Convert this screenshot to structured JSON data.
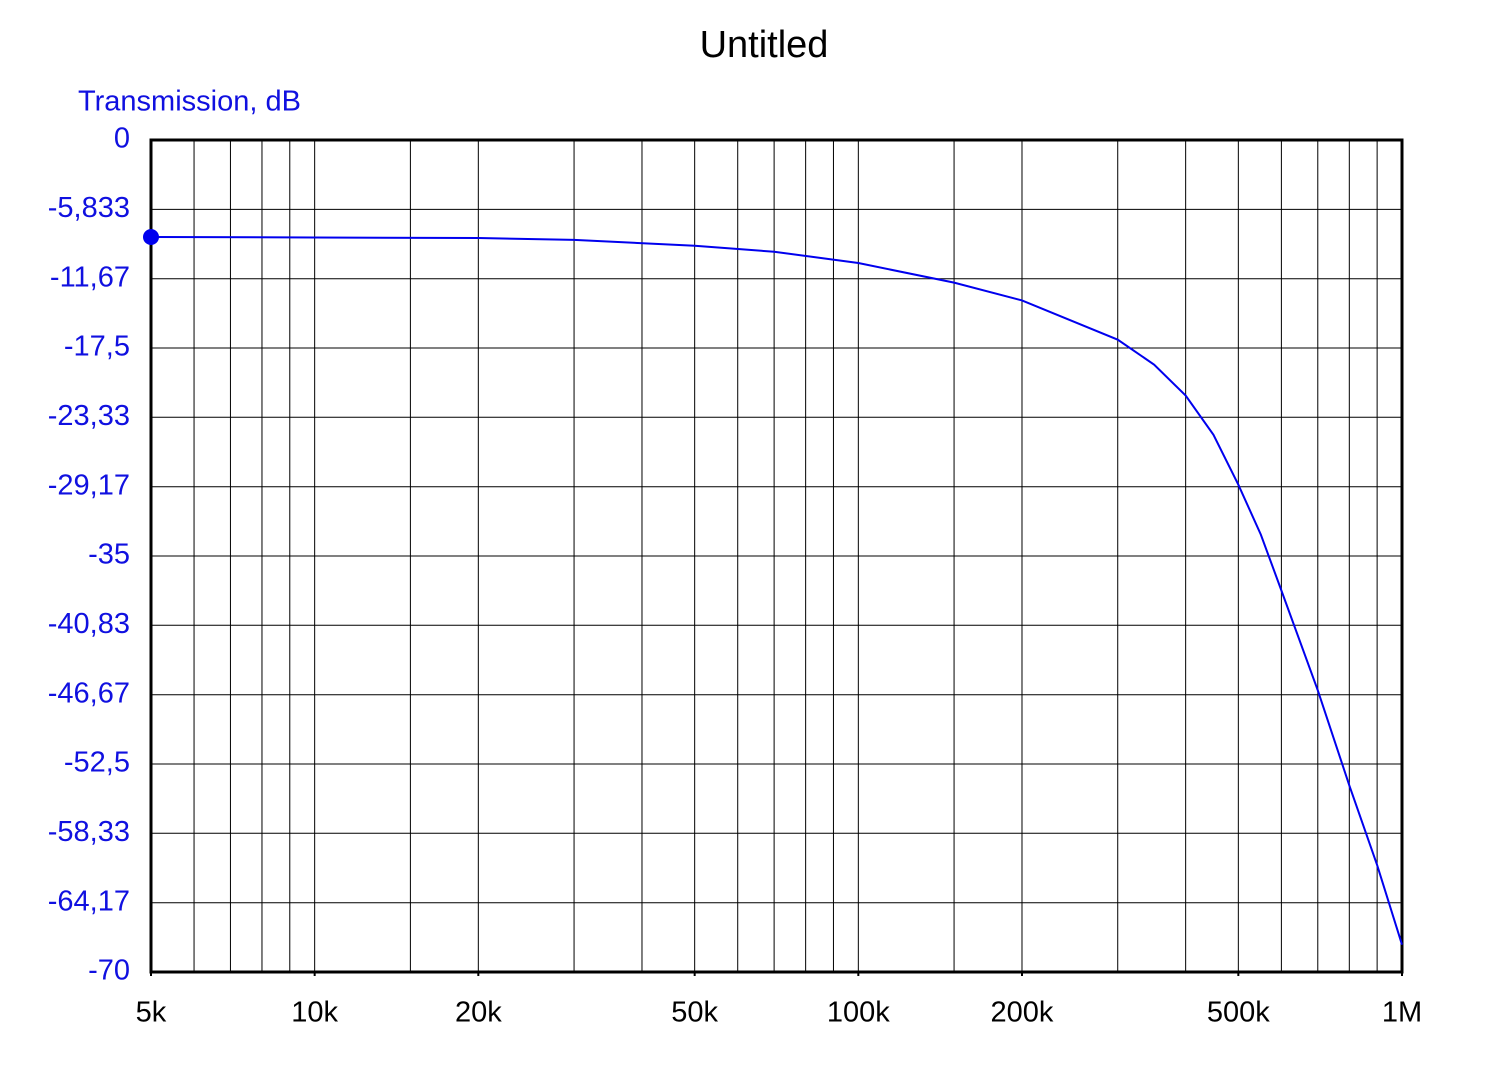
{
  "chart_data": {
    "type": "line",
    "title": "Untitled",
    "y_label": "Transmission, dB",
    "x": [
      5000,
      10000,
      20000,
      30000,
      50000,
      70000,
      100000,
      150000,
      200000,
      300000,
      350000,
      400000,
      450000,
      500000,
      550000,
      600000,
      700000,
      800000,
      900000,
      1000000
    ],
    "values": [
      -8.16,
      -8.2,
      -8.25,
      -8.4,
      -8.9,
      -9.4,
      -10.35,
      -12.0,
      -13.5,
      -16.8,
      -18.9,
      -21.5,
      -24.8,
      -29.0,
      -33.2,
      -37.9,
      -46.3,
      -54.3,
      -61.0,
      -67.7
    ],
    "color": "#0000ee",
    "marker_first": true,
    "xscale": "log",
    "xlim": [
      5000,
      1000000
    ],
    "xticks": [
      {
        "value": 5000,
        "label": "5k"
      },
      {
        "value": 10000,
        "label": "10k"
      },
      {
        "value": 20000,
        "label": "20k"
      },
      {
        "value": 50000,
        "label": "50k"
      },
      {
        "value": 100000,
        "label": "100k"
      },
      {
        "value": 200000,
        "label": "200k"
      },
      {
        "value": 500000,
        "label": "500k"
      },
      {
        "value": 1000000,
        "label": "1M"
      }
    ],
    "xgrid": [
      6000,
      7000,
      8000,
      9000,
      10000,
      15000,
      20000,
      30000,
      40000,
      50000,
      60000,
      70000,
      80000,
      90000,
      100000,
      150000,
      200000,
      300000,
      400000,
      500000,
      600000,
      700000,
      800000,
      900000
    ],
    "ylim": [
      -70,
      0
    ],
    "yticks": [
      0,
      {
        "value": -5.833,
        "label": "-5,833"
      },
      {
        "value": -11.67,
        "label": "-11,67"
      },
      {
        "value": -17.5,
        "label": "-17,5"
      },
      {
        "value": -23.33,
        "label": "-23,33"
      },
      {
        "value": -29.17,
        "label": "-29,17"
      },
      -35,
      {
        "value": -40.83,
        "label": "-40,83"
      },
      {
        "value": -46.67,
        "label": "-46,67"
      },
      {
        "value": -52.5,
        "label": "-52,5"
      },
      {
        "value": -58.33,
        "label": "-58,33"
      },
      {
        "value": -64.17,
        "label": "-64,17"
      },
      -70
    ],
    "grid": true
  }
}
